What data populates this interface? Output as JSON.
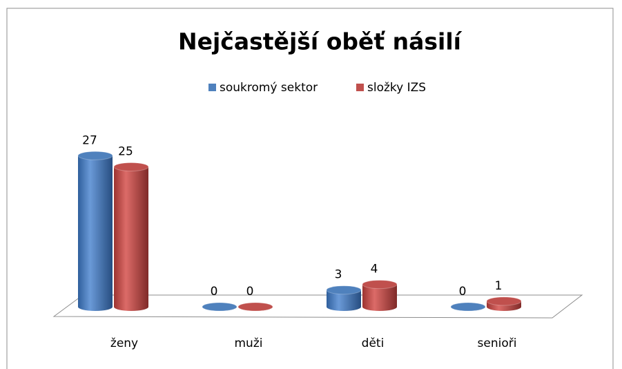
{
  "chart_data": {
    "type": "bar3d",
    "title": "Nejčastější oběť násilí",
    "categories": [
      "ženy",
      "muži",
      "děti",
      "senioři"
    ],
    "series": [
      {
        "name": "soukromý sektor",
        "color": "#4f81bd",
        "values": [
          27,
          0,
          3,
          0
        ]
      },
      {
        "name": "složky IZS",
        "color": "#c0504d",
        "values": [
          25,
          0,
          4,
          1
        ]
      }
    ],
    "legend": "top"
  }
}
